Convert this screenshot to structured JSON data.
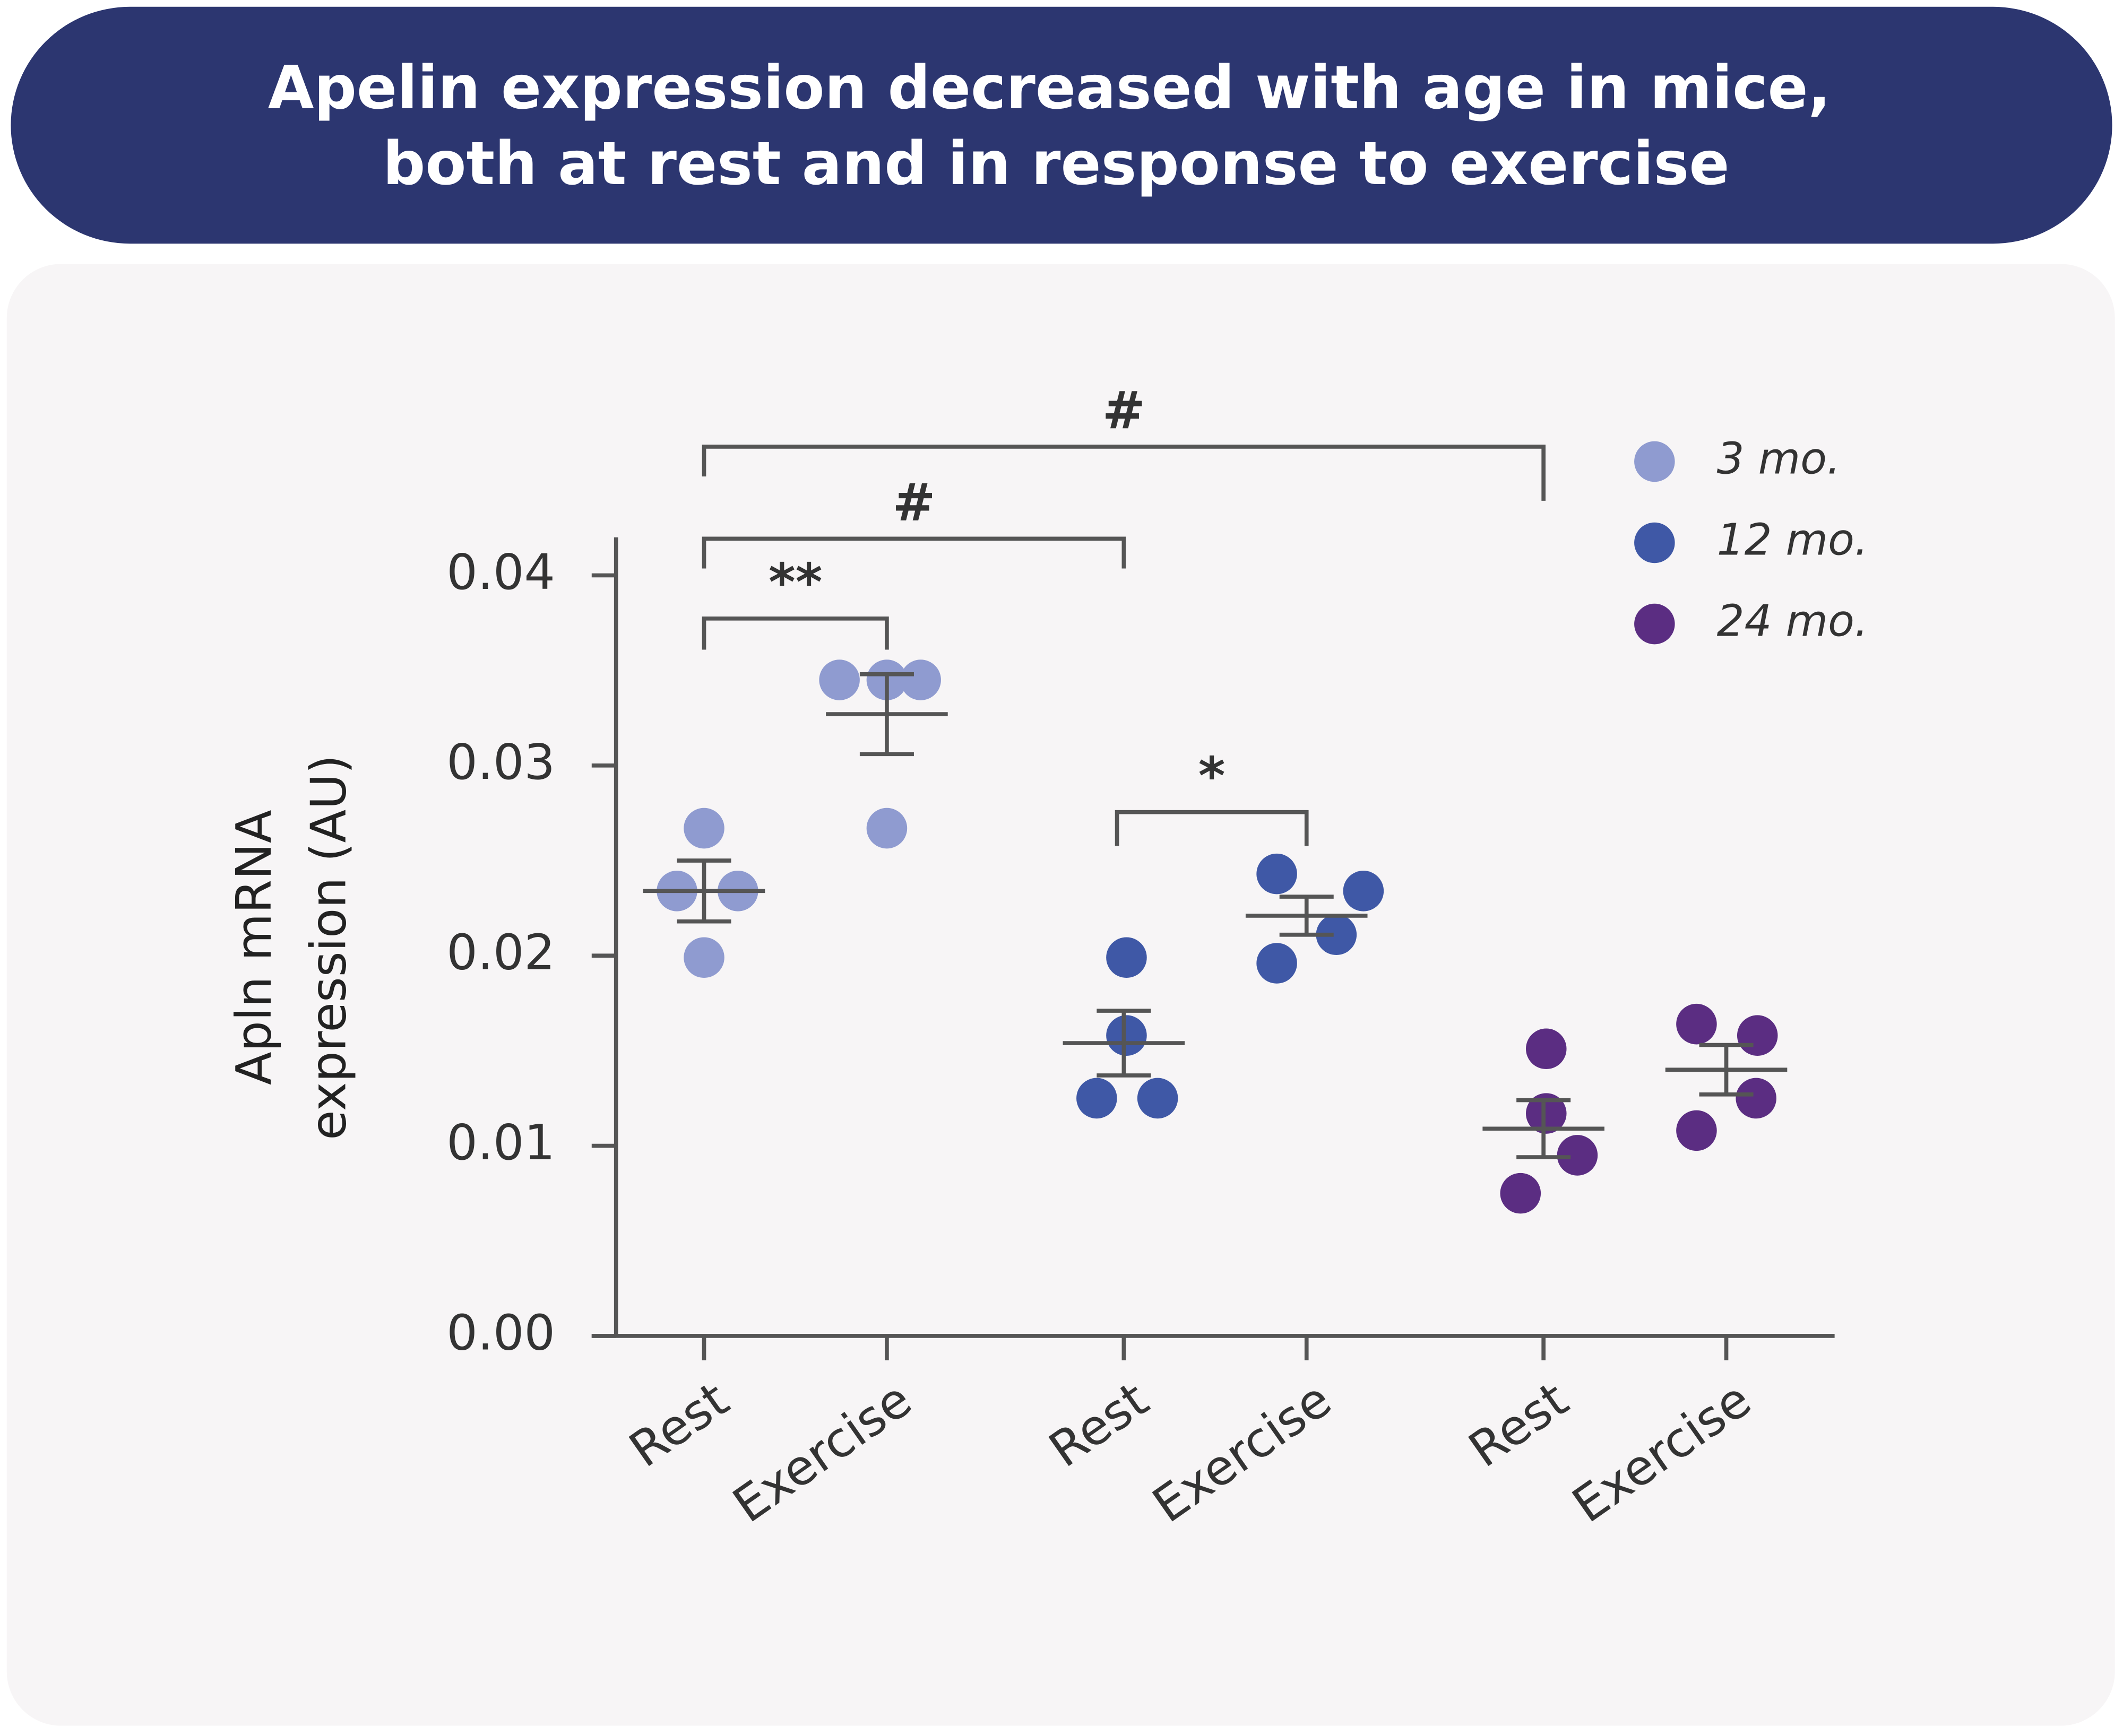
{
  "chart_data": {
    "type": "dot",
    "title": [
      "Apelin expression decreased with age in mice,",
      "both at rest and in response to exercise"
    ],
    "y_label": [
      "Apln mRNA",
      "expression (AU)"
    ],
    "ylim": [
      0,
      0.042
    ],
    "yticks": [
      {
        "value": 0,
        "label": "0.00"
      },
      0.01,
      0.02,
      0.03,
      0.04
    ],
    "annotations": [
      "**",
      "#",
      "#",
      "*"
    ],
    "series": [
      {
        "name": "3 mo.",
        "color": "#8f9bd0",
        "groups": [
          {
            "label": "Rest",
            "values": [
              0.0267,
              0.0234,
              0.0234,
              0.0199
            ],
            "mean": 0.0234,
            "sem": 0.0016
          },
          {
            "label": "Exercise",
            "values": [
              0.0345,
              0.0345,
              0.0345,
              0.0267
            ],
            "mean": 0.0327,
            "sem": 0.0021
          }
        ]
      },
      {
        "name": "12 mo.",
        "color": "#3f58a6",
        "groups": [
          {
            "label": "Rest",
            "values": [
              0.0199,
              0.0158,
              0.0125,
              0.0125
            ],
            "mean": 0.0154,
            "sem": 0.0017
          },
          {
            "label": "Exercise",
            "values": [
              0.0243,
              0.0234,
              0.0211,
              0.0196
            ],
            "mean": 0.0221,
            "sem": 0.001
          }
        ]
      },
      {
        "name": "24 mo.",
        "color": "#5b2d82",
        "groups": [
          {
            "label": "Rest",
            "values": [
              0.0151,
              0.0117,
              0.0095,
              0.0075
            ],
            "mean": 0.0109,
            "sem": 0.0015
          },
          {
            "label": "Exercise",
            "values": [
              0.0164,
              0.0158,
              0.0125,
              0.0108
            ],
            "mean": 0.014,
            "sem": 0.0013
          }
        ]
      }
    ]
  }
}
